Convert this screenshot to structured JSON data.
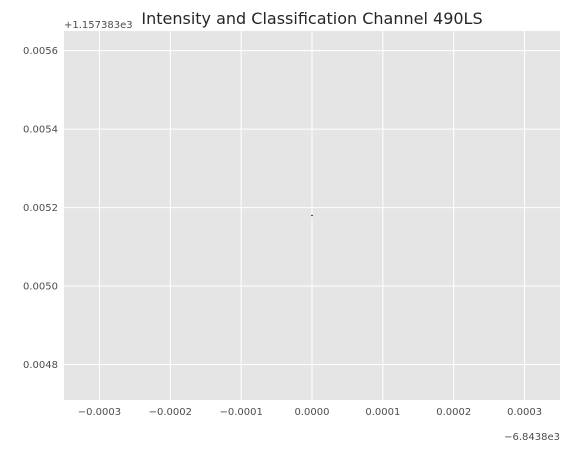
{
  "chart_data": {
    "type": "scatter",
    "title": "Intensity and Classification Channel 490LS",
    "xlabel": "",
    "ylabel": "",
    "x_offset_label": "−6.8438e3",
    "y_offset_label": "+1.157383e3",
    "xlim": [
      -0.00035,
      0.00035
    ],
    "ylim": [
      0.00471,
      0.00565
    ],
    "x_ticks": [
      {
        "value": -0.0003,
        "label": "−0.0003"
      },
      {
        "value": -0.0002,
        "label": "−0.0002"
      },
      {
        "value": -0.0001,
        "label": "−0.0001"
      },
      {
        "value": 0.0,
        "label": "0.0000"
      },
      {
        "value": 0.0001,
        "label": "0.0001"
      },
      {
        "value": 0.0002,
        "label": "0.0002"
      },
      {
        "value": 0.0003,
        "label": "0.0003"
      }
    ],
    "y_ticks": [
      {
        "value": 0.0048,
        "label": "0.0048"
      },
      {
        "value": 0.005,
        "label": "0.0050"
      },
      {
        "value": 0.0052,
        "label": "0.0052"
      },
      {
        "value": 0.0054,
        "label": "0.0054"
      },
      {
        "value": 0.0056,
        "label": "0.0056"
      }
    ],
    "points": [
      {
        "x": 0.0,
        "y": 0.00518
      }
    ],
    "grid": true,
    "colors": {
      "background": "#e5e5e5",
      "grid": "#ffffff",
      "point": "#000000",
      "text": "#4d4d4d",
      "title": "#262626"
    }
  }
}
